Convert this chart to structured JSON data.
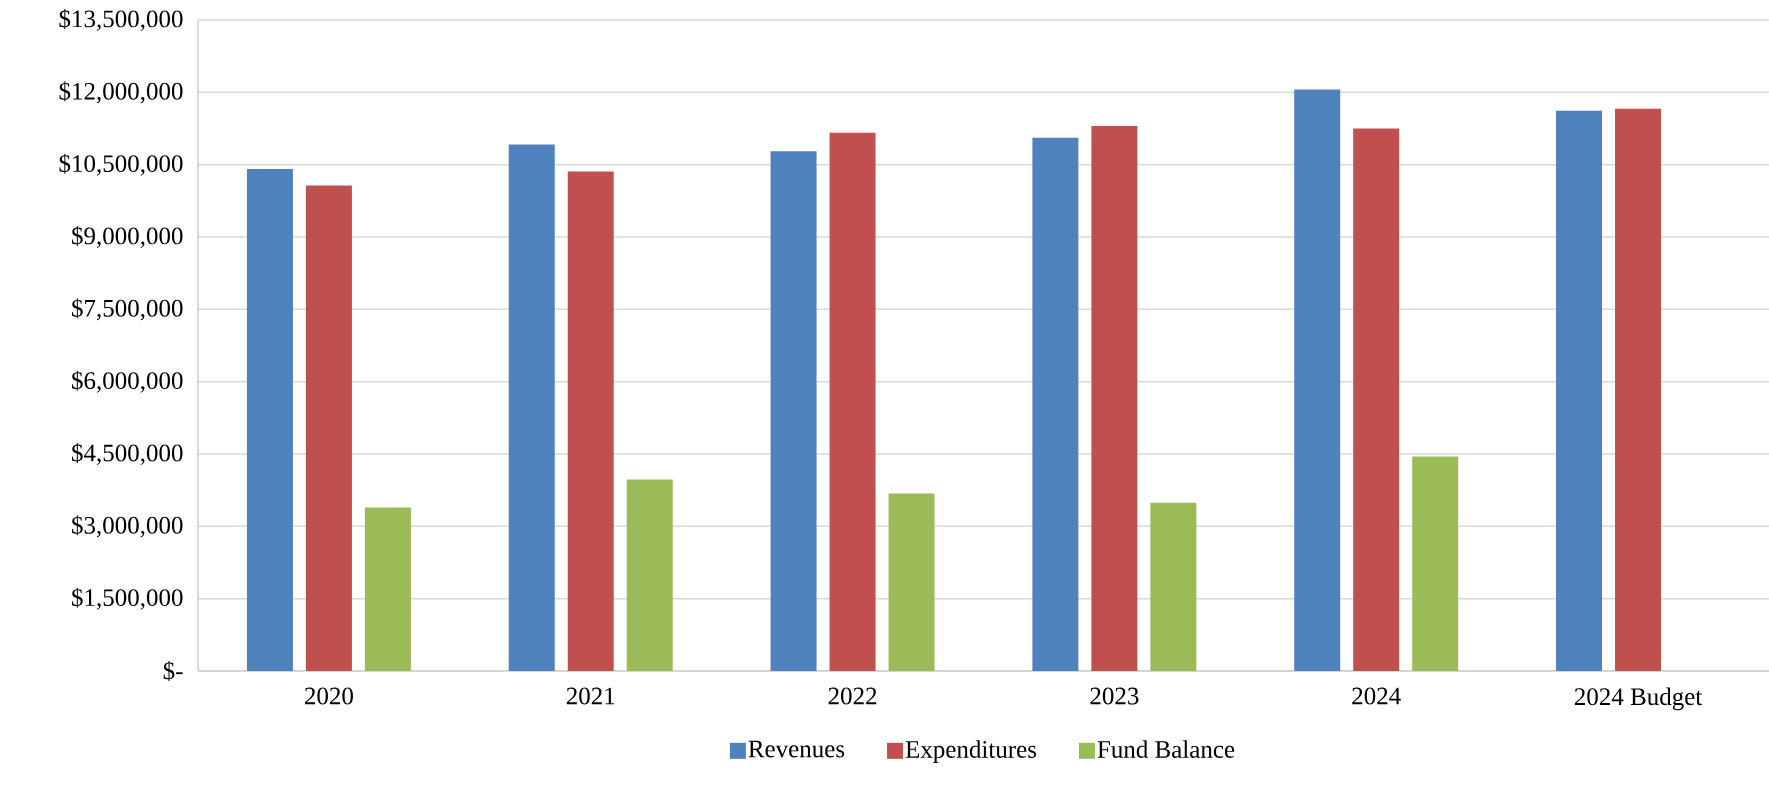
{
  "chart_data": {
    "type": "bar",
    "categories": [
      "2020",
      "2021",
      "2022",
      "2023",
      "2024",
      "2024 Budget"
    ],
    "series": [
      {
        "name": "Revenues",
        "color": "#4f81bd",
        "values": [
          10410000,
          10920000,
          10780000,
          11060000,
          12060000,
          11620000
        ]
      },
      {
        "name": "Expenditures",
        "color": "#c0504d",
        "values": [
          10070000,
          10360000,
          11160000,
          11300000,
          11250000,
          11660000
        ]
      },
      {
        "name": "Fund Balance",
        "color": "#9bbb59",
        "values": [
          3390000,
          3970000,
          3680000,
          3490000,
          4450000,
          null
        ]
      }
    ],
    "ylim": [
      0,
      13500000
    ],
    "yticks": [
      {
        "value": 0,
        "label": "$-"
      },
      {
        "value": 1500000,
        "label": "$1,500,000"
      },
      {
        "value": 3000000,
        "label": "$3,000,000"
      },
      {
        "value": 4500000,
        "label": "$4,500,000"
      },
      {
        "value": 6000000,
        "label": "$6,000,000"
      },
      {
        "value": 7500000,
        "label": "$7,500,000"
      },
      {
        "value": 9000000,
        "label": "$9,000,000"
      },
      {
        "value": 10500000,
        "label": "$10,500,000"
      },
      {
        "value": 12000000,
        "label": "$12,000,000"
      },
      {
        "value": 13500000,
        "label": "$13,500,000"
      }
    ],
    "grid": "y",
    "legend": "bottom"
  }
}
